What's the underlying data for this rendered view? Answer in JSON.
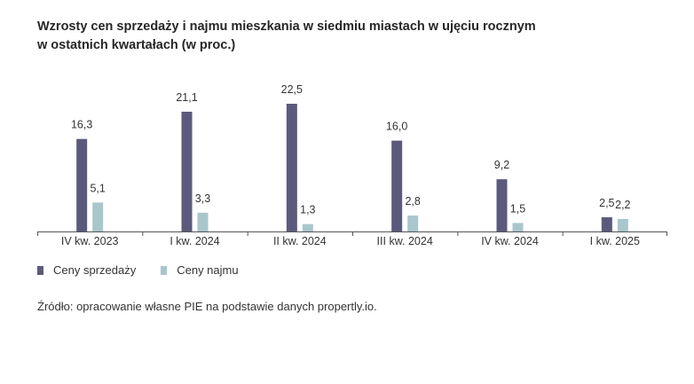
{
  "title_line1": "Wzrosty cen sprzedaży i najmu mieszkania w siedmiu miastach w ujęciu rocznym",
  "title_line2": "w ostatnich kwartałach (w proc.)",
  "source": "Źródło: opracowanie własne PIE na podstawie danych propertly.io.",
  "chart_data": {
    "type": "bar",
    "categories": [
      "IV kw. 2023",
      "I kw. 2024",
      "II kw. 2024",
      "III kw. 2024",
      "IV kw. 2024",
      "I kw. 2025"
    ],
    "series": [
      {
        "name": "Ceny sprzedaży",
        "color": "#5c5a7c",
        "values": [
          16.3,
          21.1,
          22.5,
          16.0,
          9.2,
          2.5
        ],
        "labels": [
          "16,3",
          "21,1",
          "22,5",
          "16,0",
          "9,2",
          "2,5"
        ]
      },
      {
        "name": "Ceny najmu",
        "color": "#a9c6cc",
        "values": [
          5.1,
          3.3,
          1.3,
          2.8,
          1.5,
          2.2
        ],
        "labels": [
          "5,1",
          "3,3",
          "1,3",
          "2,8",
          "1,5",
          "2,2"
        ]
      }
    ],
    "ylim": [
      0,
      22.5
    ],
    "grid": false,
    "legend_position": "bottom-left"
  }
}
